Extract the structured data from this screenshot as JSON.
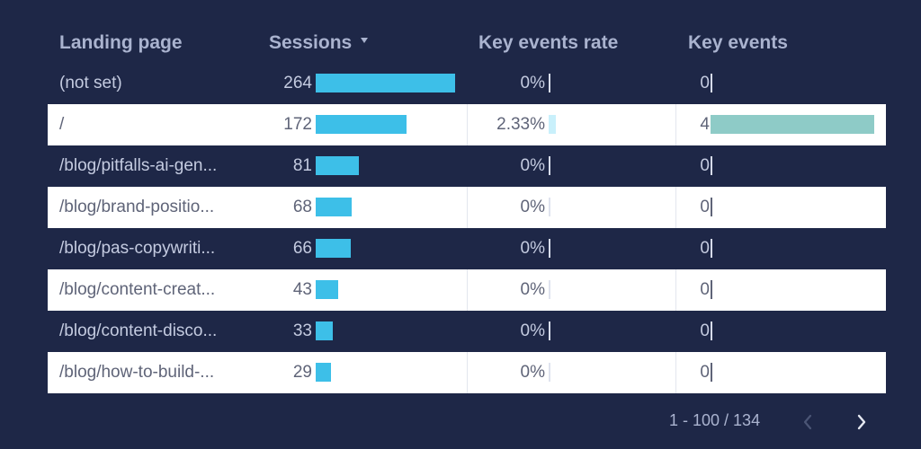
{
  "columns": {
    "landing_page": "Landing page",
    "sessions": "Sessions",
    "key_events_rate": "Key events rate",
    "key_events": "Key events"
  },
  "rows": [
    {
      "page": "(not set)",
      "sessions": "264",
      "rate": "0%",
      "events": "0",
      "sessions_value": 264,
      "rate_value": 0,
      "events_value": 0
    },
    {
      "page": "/",
      "sessions": "172",
      "rate": "2.33%",
      "events": "4",
      "sessions_value": 172,
      "rate_value": 2.33,
      "events_value": 4
    },
    {
      "page": "/blog/pitfalls-ai-gen...",
      "sessions": "81",
      "rate": "0%",
      "events": "0",
      "sessions_value": 81,
      "rate_value": 0,
      "events_value": 0
    },
    {
      "page": "/blog/brand-positio...",
      "sessions": "68",
      "rate": "0%",
      "events": "0",
      "sessions_value": 68,
      "rate_value": 0,
      "events_value": 0
    },
    {
      "page": "/blog/pas-copywriti...",
      "sessions": "66",
      "rate": "0%",
      "events": "0",
      "sessions_value": 66,
      "rate_value": 0,
      "events_value": 0
    },
    {
      "page": "/blog/content-creat...",
      "sessions": "43",
      "rate": "0%",
      "events": "0",
      "sessions_value": 43,
      "rate_value": 0,
      "events_value": 0
    },
    {
      "page": "/blog/content-disco...",
      "sessions": "33",
      "rate": "0%",
      "events": "0",
      "sessions_value": 33,
      "rate_value": 0,
      "events_value": 0
    },
    {
      "page": "/blog/how-to-build-...",
      "sessions": "29",
      "rate": "0%",
      "events": "0",
      "sessions_value": 29,
      "rate_value": 0,
      "events_value": 0
    }
  ],
  "pagination": {
    "label": "1 - 100 / 134",
    "prev_icon": "chevron-left-icon",
    "next_icon": "chevron-right-icon"
  },
  "colors": {
    "background": "#1e2747",
    "sessions_bar": "#3dbfe8",
    "rate_bar": "#c9f0fb",
    "events_bar": "#8ecbc7"
  }
}
